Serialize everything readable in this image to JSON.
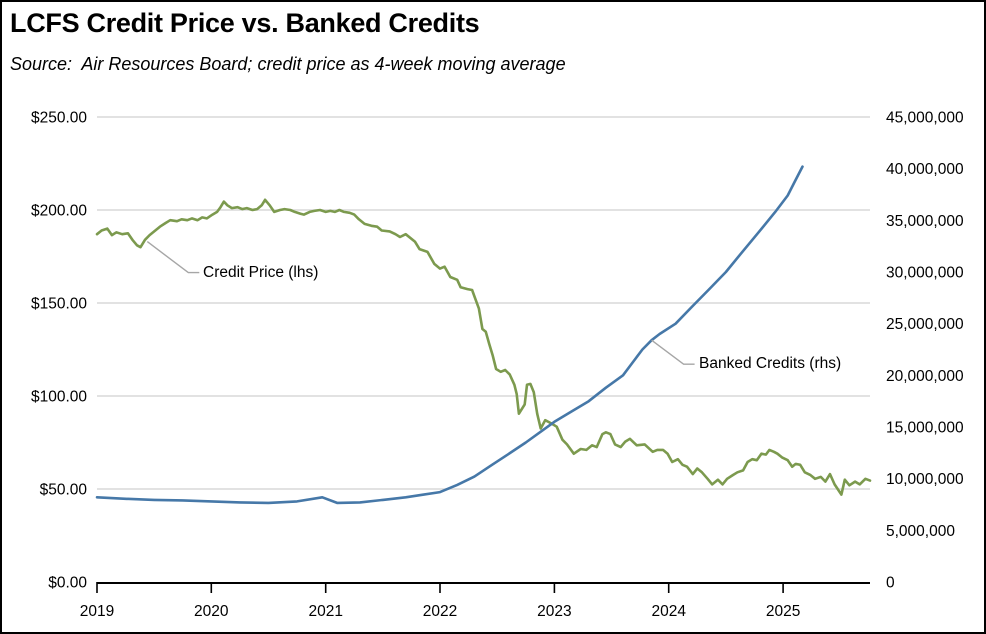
{
  "header": {
    "title": "LCFS Credit Price vs. Banked Credits",
    "subtitle": "Source:  Air Resources Board; credit price as 4-week moving average"
  },
  "colors": {
    "credit_price_line": "#7C9A4E",
    "banked_credits_line": "#4678A8",
    "gridline": "#D9D9D9",
    "leader_line": "#A6A6A6",
    "axis_line": "#000000",
    "text": "#000000",
    "background": "#FFFFFF"
  },
  "chart_data": {
    "type": "line",
    "title": "LCFS Credit Price vs. Banked Credits",
    "subtitle": "Source:  Air Resources Board; credit price as 4-week moving average",
    "grid": "horizontal-only",
    "legend_position": "inline-annotations",
    "x_axis": {
      "range": [
        2019,
        2025.76
      ],
      "tick_values": [
        2019,
        2020,
        2021,
        2022,
        2023,
        2024,
        2025
      ],
      "tick_labels": [
        "2019",
        "2020",
        "2021",
        "2022",
        "2023",
        "2024",
        "2025"
      ]
    },
    "y_left": {
      "label": "Credit Price ($)",
      "min": 0,
      "max": 250,
      "step": 50,
      "ticks": [
        0,
        50,
        100,
        150,
        200,
        250
      ],
      "tick_labels": [
        "$0.00",
        "$50.00",
        "$100.00",
        "$150.00",
        "$200.00",
        "$250.00"
      ]
    },
    "y_right": {
      "label": "Banked Credits",
      "min": 0,
      "max": 45000000,
      "step": 5000000,
      "ticks": [
        0,
        5000000,
        10000000,
        15000000,
        20000000,
        25000000,
        30000000,
        35000000,
        40000000,
        45000000
      ],
      "tick_labels": [
        "0",
        "5,000,000",
        "10,000,000",
        "15,000,000",
        "20,000,000",
        "25,000,000",
        "30,000,000",
        "35,000,000",
        "40,000,000",
        "45,000,000"
      ]
    },
    "series": [
      {
        "name": "Credit Price (lhs)",
        "axis": "left",
        "color": "#7C9A4E",
        "points": [
          [
            2019.0,
            187
          ],
          [
            2019.04,
            189
          ],
          [
            2019.09,
            190
          ],
          [
            2019.13,
            186.5
          ],
          [
            2019.17,
            188
          ],
          [
            2019.22,
            187
          ],
          [
            2019.27,
            187.5
          ],
          [
            2019.31,
            184
          ],
          [
            2019.35,
            181
          ],
          [
            2019.38,
            180
          ],
          [
            2019.42,
            184
          ],
          [
            2019.46,
            186.5
          ],
          [
            2019.51,
            189
          ],
          [
            2019.55,
            191
          ],
          [
            2019.6,
            193
          ],
          [
            2019.64,
            194.5
          ],
          [
            2019.7,
            194
          ],
          [
            2019.74,
            195
          ],
          [
            2019.79,
            194.5
          ],
          [
            2019.83,
            195.5
          ],
          [
            2019.88,
            194.5
          ],
          [
            2019.92,
            196
          ],
          [
            2019.96,
            195.5
          ],
          [
            2020.01,
            197.5
          ],
          [
            2020.05,
            199
          ],
          [
            2020.08,
            201.5
          ],
          [
            2020.11,
            204.5
          ],
          [
            2020.14,
            202.5
          ],
          [
            2020.18,
            201
          ],
          [
            2020.23,
            201.5
          ],
          [
            2020.27,
            200.5
          ],
          [
            2020.31,
            201
          ],
          [
            2020.36,
            200
          ],
          [
            2020.4,
            200.5
          ],
          [
            2020.44,
            202.5
          ],
          [
            2020.47,
            205.5
          ],
          [
            2020.51,
            202.5
          ],
          [
            2020.55,
            199
          ],
          [
            2020.6,
            200
          ],
          [
            2020.64,
            200.5
          ],
          [
            2020.69,
            200
          ],
          [
            2020.73,
            199
          ],
          [
            2020.78,
            198
          ],
          [
            2020.81,
            197.5
          ],
          [
            2020.86,
            199
          ],
          [
            2020.9,
            199.5
          ],
          [
            2020.95,
            200
          ],
          [
            2021.0,
            199
          ],
          [
            2021.04,
            199.5
          ],
          [
            2021.08,
            199
          ],
          [
            2021.12,
            200
          ],
          [
            2021.16,
            199
          ],
          [
            2021.21,
            198.5
          ],
          [
            2021.25,
            197.5
          ],
          [
            2021.29,
            195
          ],
          [
            2021.34,
            192.5
          ],
          [
            2021.4,
            191.5
          ],
          [
            2021.45,
            191
          ],
          [
            2021.49,
            189
          ],
          [
            2021.56,
            188.5
          ],
          [
            2021.61,
            187
          ],
          [
            2021.65,
            185.5
          ],
          [
            2021.7,
            187
          ],
          [
            2021.78,
            183
          ],
          [
            2021.82,
            179
          ],
          [
            2021.89,
            177.5
          ],
          [
            2021.95,
            171
          ],
          [
            2022.0,
            168.5
          ],
          [
            2022.04,
            169.5
          ],
          [
            2022.09,
            164
          ],
          [
            2022.15,
            162.5
          ],
          [
            2022.18,
            158.5
          ],
          [
            2022.24,
            157.5
          ],
          [
            2022.28,
            157
          ],
          [
            2022.31,
            152
          ],
          [
            2022.34,
            147
          ],
          [
            2022.37,
            136
          ],
          [
            2022.4,
            134.5
          ],
          [
            2022.43,
            128
          ],
          [
            2022.46,
            122
          ],
          [
            2022.49,
            114.5
          ],
          [
            2022.53,
            113
          ],
          [
            2022.57,
            114
          ],
          [
            2022.61,
            111.5
          ],
          [
            2022.65,
            106
          ],
          [
            2022.67,
            101
          ],
          [
            2022.69,
            90.5
          ],
          [
            2022.74,
            95.5
          ],
          [
            2022.76,
            106
          ],
          [
            2022.79,
            106.5
          ],
          [
            2022.82,
            102
          ],
          [
            2022.85,
            90.5
          ],
          [
            2022.88,
            82.5
          ],
          [
            2022.92,
            87
          ],
          [
            2022.95,
            86
          ],
          [
            2022.98,
            85
          ],
          [
            2023.02,
            83.5
          ],
          [
            2023.07,
            76.5
          ],
          [
            2023.11,
            74
          ],
          [
            2023.17,
            69
          ],
          [
            2023.23,
            71.5
          ],
          [
            2023.28,
            71
          ],
          [
            2023.33,
            73.5
          ],
          [
            2023.37,
            72.5
          ],
          [
            2023.42,
            79.5
          ],
          [
            2023.45,
            80.5
          ],
          [
            2023.49,
            79.5
          ],
          [
            2023.53,
            74
          ],
          [
            2023.58,
            72.5
          ],
          [
            2023.62,
            75.5
          ],
          [
            2023.66,
            77
          ],
          [
            2023.72,
            73.5
          ],
          [
            2023.79,
            74
          ],
          [
            2023.86,
            70
          ],
          [
            2023.9,
            71
          ],
          [
            2023.95,
            71
          ],
          [
            2023.99,
            69
          ],
          [
            2024.03,
            64.5
          ],
          [
            2024.08,
            66
          ],
          [
            2024.12,
            63
          ],
          [
            2024.16,
            62
          ],
          [
            2024.21,
            58
          ],
          [
            2024.25,
            61
          ],
          [
            2024.29,
            59
          ],
          [
            2024.34,
            55.5
          ],
          [
            2024.38,
            52.5
          ],
          [
            2024.43,
            55
          ],
          [
            2024.47,
            52.5
          ],
          [
            2024.51,
            55.5
          ],
          [
            2024.56,
            57.5
          ],
          [
            2024.6,
            59
          ],
          [
            2024.65,
            60
          ],
          [
            2024.69,
            64.5
          ],
          [
            2024.73,
            66
          ],
          [
            2024.77,
            65.5
          ],
          [
            2024.81,
            69
          ],
          [
            2024.85,
            68.5
          ],
          [
            2024.88,
            71
          ],
          [
            2024.92,
            70
          ],
          [
            2024.95,
            69
          ],
          [
            2024.99,
            67
          ],
          [
            2025.04,
            65.5
          ],
          [
            2025.08,
            62
          ],
          [
            2025.11,
            63.5
          ],
          [
            2025.15,
            63
          ],
          [
            2025.19,
            59
          ],
          [
            2025.24,
            57.5
          ],
          [
            2025.28,
            55.5
          ],
          [
            2025.33,
            56.5
          ],
          [
            2025.37,
            54
          ],
          [
            2025.41,
            58
          ],
          [
            2025.45,
            52.5
          ],
          [
            2025.51,
            47
          ],
          [
            2025.54,
            55
          ],
          [
            2025.58,
            52
          ],
          [
            2025.63,
            54
          ],
          [
            2025.67,
            52.5
          ],
          [
            2025.72,
            55.5
          ],
          [
            2025.76,
            54.5
          ]
        ]
      },
      {
        "name": "Banked Credits (rhs)",
        "axis": "right",
        "color": "#4678A8",
        "points": [
          [
            2019.0,
            8200000
          ],
          [
            2019.25,
            8050000
          ],
          [
            2019.5,
            7950000
          ],
          [
            2019.75,
            7900000
          ],
          [
            2020.0,
            7800000
          ],
          [
            2020.25,
            7700000
          ],
          [
            2020.5,
            7650000
          ],
          [
            2020.75,
            7800000
          ],
          [
            2020.97,
            8200000
          ],
          [
            2021.1,
            7650000
          ],
          [
            2021.3,
            7700000
          ],
          [
            2021.5,
            7950000
          ],
          [
            2021.7,
            8200000
          ],
          [
            2021.85,
            8450000
          ],
          [
            2022.0,
            8700000
          ],
          [
            2022.15,
            9400000
          ],
          [
            2022.3,
            10200000
          ],
          [
            2022.45,
            11300000
          ],
          [
            2022.6,
            12400000
          ],
          [
            2022.75,
            13500000
          ],
          [
            2022.9,
            14700000
          ],
          [
            2023.0,
            15500000
          ],
          [
            2023.15,
            16500000
          ],
          [
            2023.3,
            17500000
          ],
          [
            2023.45,
            18800000
          ],
          [
            2023.6,
            20000000
          ],
          [
            2023.77,
            22500000
          ],
          [
            2023.85,
            23400000
          ],
          [
            2023.92,
            24000000
          ],
          [
            2024.06,
            25000000
          ],
          [
            2024.2,
            26600000
          ],
          [
            2024.35,
            28300000
          ],
          [
            2024.5,
            30000000
          ],
          [
            2024.64,
            31900000
          ],
          [
            2024.79,
            33900000
          ],
          [
            2024.93,
            35800000
          ],
          [
            2025.04,
            37400000
          ],
          [
            2025.1,
            38700000
          ],
          [
            2025.17,
            40200000
          ]
        ]
      }
    ],
    "annotations": [
      {
        "text": "Credit Price (lhs)",
        "axis": "left",
        "year": 2019.44,
        "value": 183,
        "elbow_dx": 41,
        "elbow_dy": 31
      },
      {
        "text": "Banked Credits (rhs)",
        "axis": "right",
        "year": 2023.85,
        "value": 23400000,
        "elbow_dx": 32,
        "elbow_dy": 24
      }
    ]
  }
}
